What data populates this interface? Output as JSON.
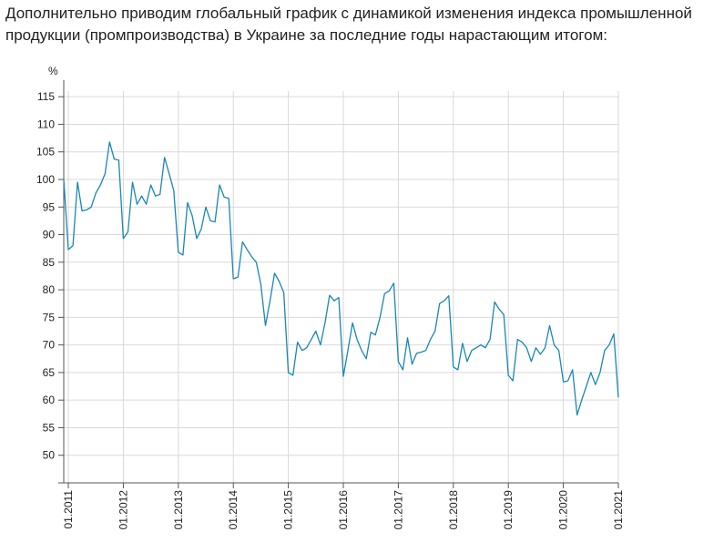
{
  "intro_text": "Дополнительно приводим глобальный график с динамикой изменения индекса промышленной продукции (промпроизводства) в Украине за последние годы нарастающим итогом:",
  "chart_data": {
    "type": "line",
    "unit_label": "%",
    "ylim": [
      45,
      118
    ],
    "yticks": [
      50,
      55,
      60,
      65,
      70,
      75,
      80,
      85,
      90,
      95,
      100,
      105,
      110,
      115
    ],
    "xlim": [
      "2010-12",
      "2021-01"
    ],
    "xticks": [
      {
        "value": "2011-01",
        "label": "01.2011"
      },
      {
        "value": "2012-01",
        "label": "01.2012"
      },
      {
        "value": "2013-01",
        "label": "01.2013"
      },
      {
        "value": "2014-01",
        "label": "01.2014"
      },
      {
        "value": "2015-01",
        "label": "01.2015"
      },
      {
        "value": "2016-01",
        "label": "01.2016"
      },
      {
        "value": "2017-01",
        "label": "01.2017"
      },
      {
        "value": "2018-01",
        "label": "01.2018"
      },
      {
        "value": "2019-01",
        "label": "01.2019"
      },
      {
        "value": "2020-01",
        "label": "01.2020"
      },
      {
        "value": "2021-01",
        "label": "01.2021"
      }
    ],
    "grid": true,
    "series": [
      {
        "color": "#1a87b5",
        "x": [
          "2010-12",
          "2011-01",
          "2011-02",
          "2011-03",
          "2011-04",
          "2011-05",
          "2011-06",
          "2011-07",
          "2011-08",
          "2011-09",
          "2011-10",
          "2011-11",
          "2011-12",
          "2012-01",
          "2012-02",
          "2012-03",
          "2012-04",
          "2012-05",
          "2012-06",
          "2012-07",
          "2012-08",
          "2012-09",
          "2012-10",
          "2012-11",
          "2012-12",
          "2013-01",
          "2013-02",
          "2013-03",
          "2013-04",
          "2013-05",
          "2013-06",
          "2013-07",
          "2013-08",
          "2013-09",
          "2013-10",
          "2013-11",
          "2013-12",
          "2014-01",
          "2014-02",
          "2014-03",
          "2014-04",
          "2014-05",
          "2014-06",
          "2014-07",
          "2014-08",
          "2014-09",
          "2014-10",
          "2014-11",
          "2014-12",
          "2015-01",
          "2015-02",
          "2015-03",
          "2015-04",
          "2015-05",
          "2015-06",
          "2015-07",
          "2015-08",
          "2015-09",
          "2015-10",
          "2015-11",
          "2015-12",
          "2016-01",
          "2016-02",
          "2016-03",
          "2016-04",
          "2016-05",
          "2016-06",
          "2016-07",
          "2016-08",
          "2016-09",
          "2016-10",
          "2016-11",
          "2016-12",
          "2017-01",
          "2017-02",
          "2017-03",
          "2017-04",
          "2017-05",
          "2017-06",
          "2017-07",
          "2017-08",
          "2017-09",
          "2017-10",
          "2017-11",
          "2017-12",
          "2018-01",
          "2018-02",
          "2018-03",
          "2018-04",
          "2018-05",
          "2018-06",
          "2018-07",
          "2018-08",
          "2018-09",
          "2018-10",
          "2018-11",
          "2018-12",
          "2019-01",
          "2019-02",
          "2019-03",
          "2019-04",
          "2019-05",
          "2019-06",
          "2019-07",
          "2019-08",
          "2019-09",
          "2019-10",
          "2019-11",
          "2019-12",
          "2020-01",
          "2020-02",
          "2020-03",
          "2020-04",
          "2020-05",
          "2020-06",
          "2020-07",
          "2020-08",
          "2020-09",
          "2020-10",
          "2020-11",
          "2020-12",
          "2021-01"
        ],
        "values": [
          100.0,
          87.3,
          88.0,
          99.5,
          94.3,
          94.5,
          95.0,
          97.5,
          99.0,
          101.0,
          106.8,
          103.7,
          103.5,
          89.3,
          90.5,
          99.5,
          95.5,
          97.0,
          95.5,
          99.0,
          97.0,
          97.3,
          104.0,
          101.0,
          98.0,
          86.8,
          86.3,
          95.8,
          93.5,
          89.3,
          91.0,
          95.0,
          92.5,
          92.3,
          99.0,
          96.8,
          96.6,
          82.0,
          82.3,
          88.7,
          87.3,
          86.0,
          85.0,
          81.0,
          73.5,
          78.0,
          83.0,
          81.5,
          79.5,
          65.0,
          64.5,
          70.5,
          69.0,
          69.5,
          71.0,
          72.5,
          70.0,
          74.0,
          79.0,
          78.0,
          78.6,
          64.3,
          69.0,
          74.0,
          71.0,
          69.0,
          67.5,
          72.3,
          71.8,
          75.0,
          79.3,
          79.8,
          81.2,
          67.0,
          65.5,
          71.3,
          66.5,
          68.5,
          68.7,
          69.0,
          71.0,
          72.5,
          77.5,
          78.0,
          78.9,
          66.0,
          65.5,
          70.3,
          67.0,
          69.0,
          69.5,
          70.0,
          69.5,
          71.0,
          77.8,
          76.5,
          75.5,
          64.5,
          63.5,
          71.0,
          70.5,
          69.5,
          67.0,
          69.5,
          68.3,
          69.5,
          73.5,
          70.0,
          69.0,
          63.3,
          63.5,
          65.5,
          57.3,
          60.0,
          62.5,
          65.0,
          62.8,
          65.0,
          69.0,
          70.0,
          72.0,
          60.5
        ]
      }
    ]
  }
}
